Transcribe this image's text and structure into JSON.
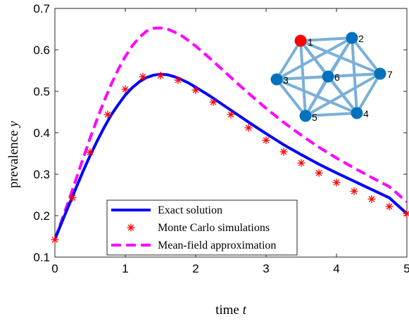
{
  "chart_data": {
    "type": "line",
    "xlabel": "time",
    "xlabel_var": "t",
    "ylabel": "prevalence",
    "ylabel_var": "y",
    "xlim": [
      0,
      5
    ],
    "ylim": [
      0.1,
      0.7
    ],
    "xticks": [
      "0",
      "1",
      "2",
      "3",
      "4",
      "5"
    ],
    "yticks": [
      "0.1",
      "0.2",
      "0.3",
      "0.4",
      "0.5",
      "0.6",
      "0.7"
    ],
    "grid": false,
    "legend_position": "bottom-center",
    "series": [
      {
        "name": "Exact solution",
        "style": "solid",
        "color": "#0000ff",
        "x": [
          0,
          0.1,
          0.2,
          0.3,
          0.4,
          0.5,
          0.6,
          0.7,
          0.8,
          0.9,
          1.0,
          1.1,
          1.2,
          1.3,
          1.4,
          1.5,
          1.6,
          1.7,
          1.8,
          1.9,
          2.0,
          2.2,
          2.4,
          2.6,
          2.8,
          3.0,
          3.25,
          3.5,
          3.75,
          4.0,
          4.25,
          4.5,
          4.75,
          5.0
        ],
        "y": [
          0.143,
          0.185,
          0.226,
          0.267,
          0.307,
          0.345,
          0.38,
          0.413,
          0.443,
          0.468,
          0.491,
          0.509,
          0.523,
          0.533,
          0.539,
          0.541,
          0.54,
          0.535,
          0.528,
          0.52,
          0.51,
          0.489,
          0.466,
          0.443,
          0.42,
          0.398,
          0.371,
          0.347,
          0.324,
          0.303,
          0.283,
          0.263,
          0.243,
          0.205
        ]
      },
      {
        "name": "Monte Carlo simulations",
        "style": "markers",
        "marker": "asterisk",
        "color": "#ff0000",
        "x": [
          0,
          0.25,
          0.5,
          0.75,
          1.0,
          1.25,
          1.5,
          1.75,
          2.0,
          2.25,
          2.5,
          2.75,
          3.0,
          3.25,
          3.5,
          3.75,
          4.0,
          4.25,
          4.5,
          4.75,
          5.0
        ],
        "y": [
          0.142,
          0.243,
          0.353,
          0.444,
          0.505,
          0.535,
          0.538,
          0.527,
          0.503,
          0.474,
          0.444,
          0.412,
          0.382,
          0.354,
          0.327,
          0.303,
          0.28,
          0.259,
          0.24,
          0.222,
          0.205
        ]
      },
      {
        "name": "Mean-field approximation",
        "style": "dashed",
        "color": "#ff00ff",
        "x": [
          0,
          0.1,
          0.2,
          0.3,
          0.4,
          0.5,
          0.6,
          0.7,
          0.8,
          0.9,
          1.0,
          1.1,
          1.2,
          1.3,
          1.4,
          1.5,
          1.6,
          1.7,
          1.8,
          1.9,
          2.0,
          2.2,
          2.4,
          2.6,
          2.8,
          3.0,
          3.25,
          3.5,
          3.75,
          4.0,
          4.25,
          4.5,
          4.75,
          5.0
        ],
        "y": [
          0.143,
          0.19,
          0.238,
          0.288,
          0.338,
          0.387,
          0.433,
          0.477,
          0.517,
          0.553,
          0.584,
          0.61,
          0.63,
          0.645,
          0.652,
          0.653,
          0.65,
          0.643,
          0.634,
          0.622,
          0.609,
          0.58,
          0.549,
          0.518,
          0.488,
          0.459,
          0.425,
          0.394,
          0.365,
          0.339,
          0.315,
          0.292,
          0.27,
          0.233
        ]
      }
    ],
    "network_inset": {
      "nodes": [
        {
          "id": "1",
          "color": "#ff0000"
        },
        {
          "id": "2",
          "color": "#0072bd"
        },
        {
          "id": "3",
          "color": "#0072bd"
        },
        {
          "id": "4",
          "color": "#0072bd"
        },
        {
          "id": "5",
          "color": "#0072bd"
        },
        {
          "id": "6",
          "color": "#0072bd"
        },
        {
          "id": "7",
          "color": "#0072bd"
        }
      ],
      "edge_color": "#7ab0d8",
      "complete_graph": true
    }
  }
}
